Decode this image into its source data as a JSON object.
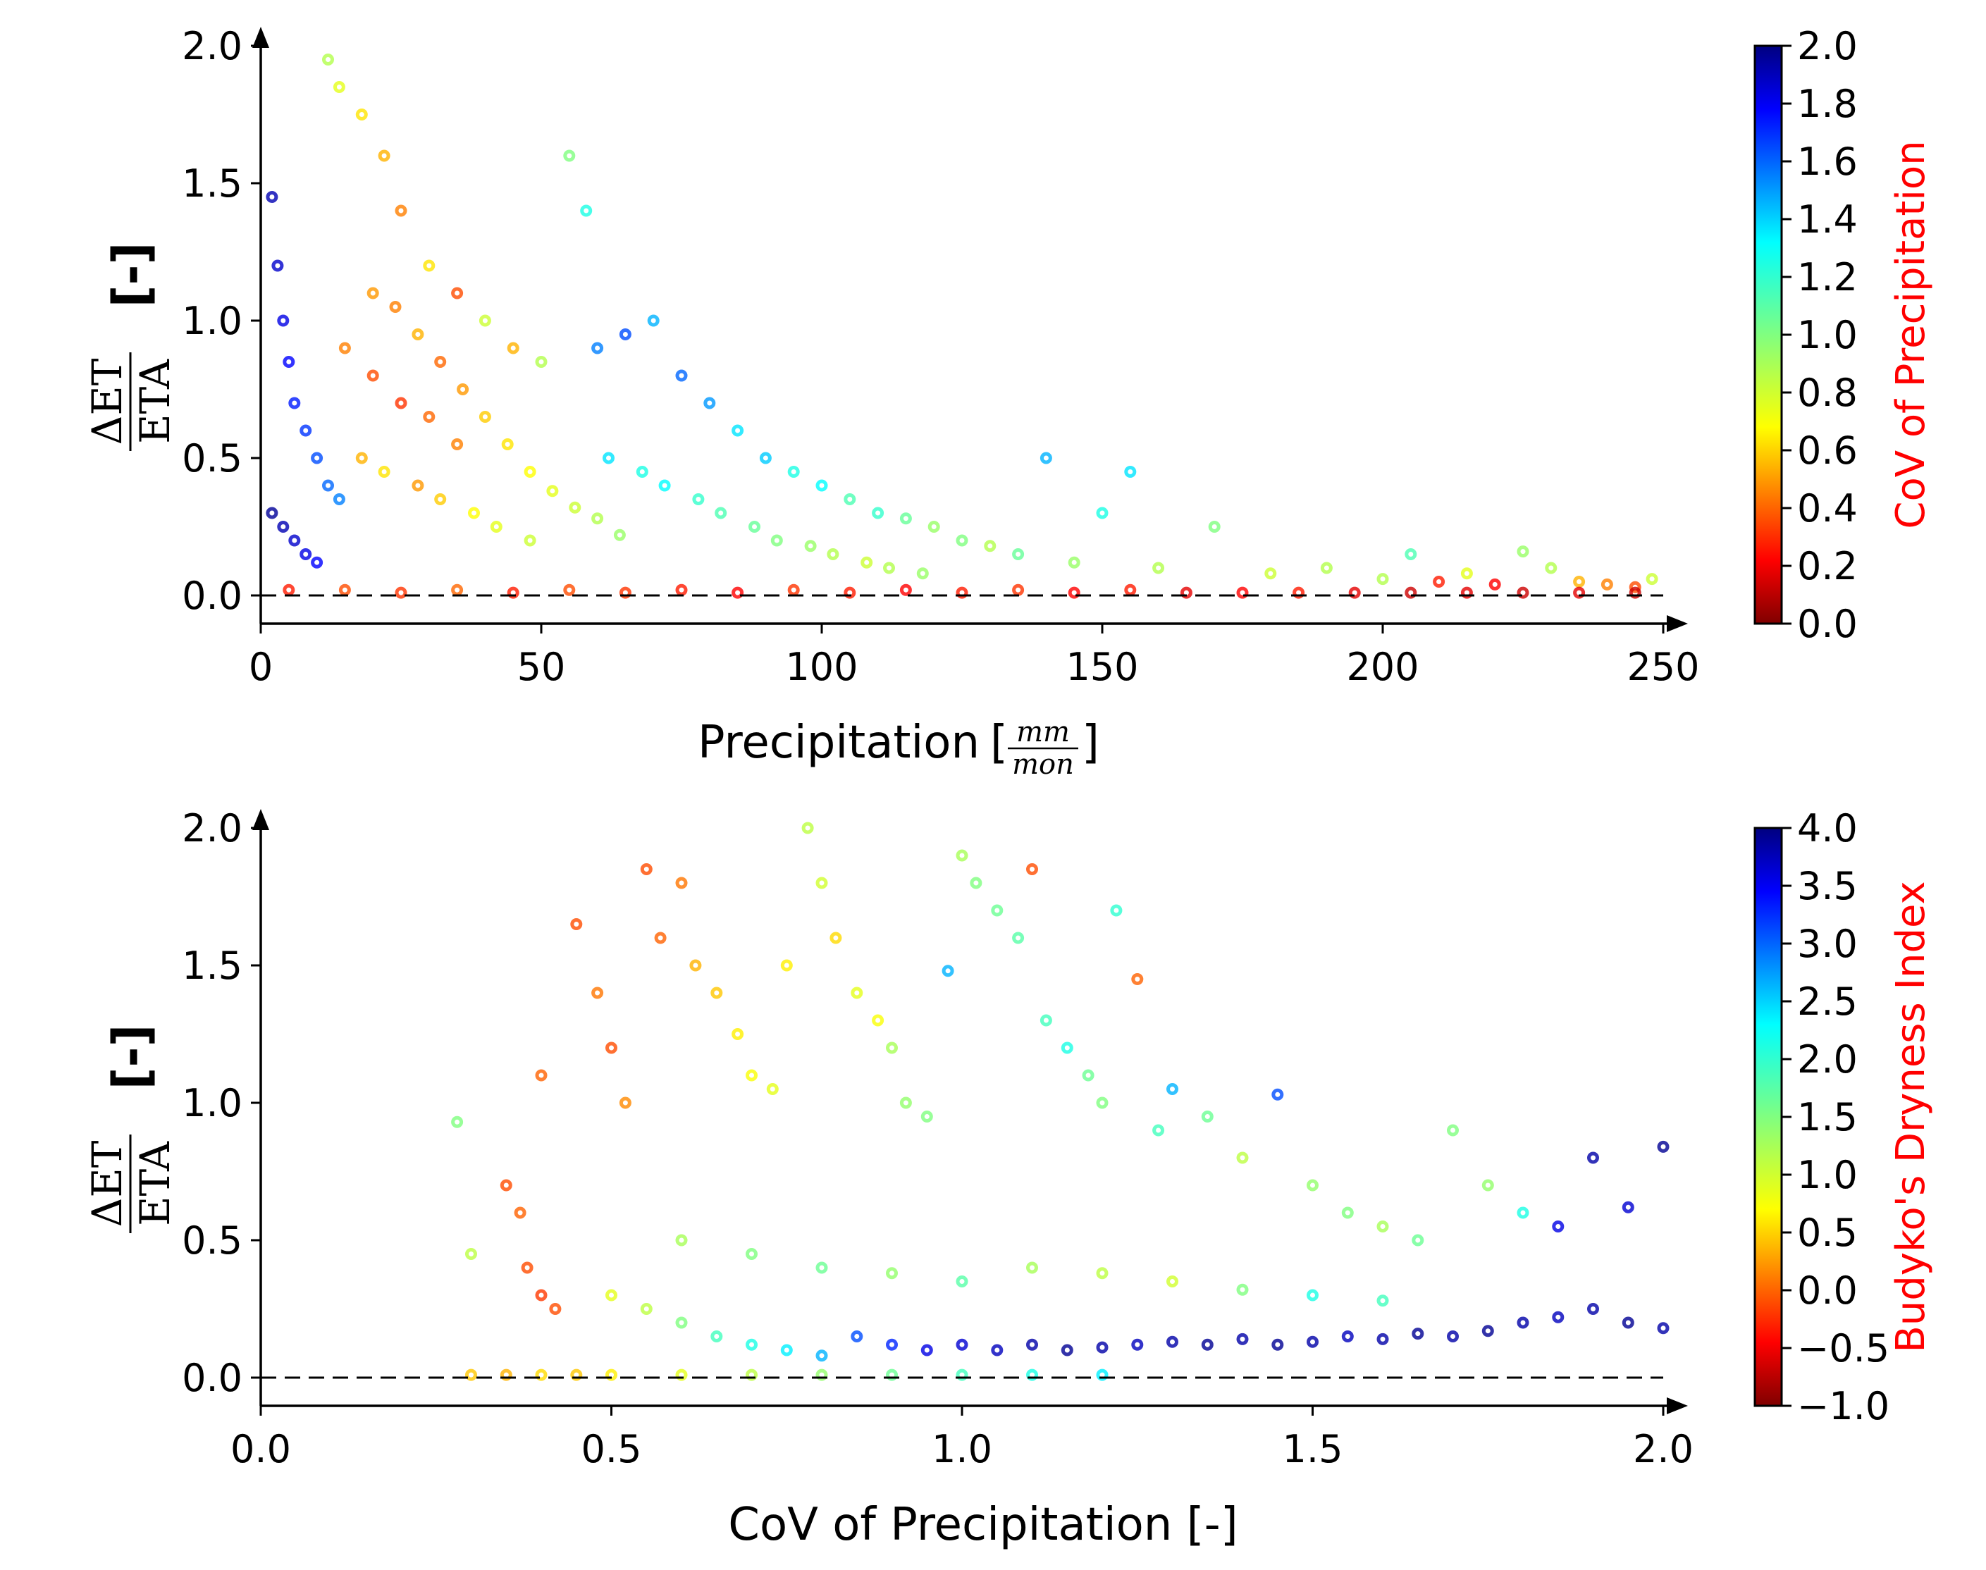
{
  "chart_data": [
    {
      "type": "scatter",
      "xlabel_text": "Precipitation",
      "xlabel_unit_num": "mm",
      "xlabel_unit_den": "mon",
      "ylabel_num": "ΔET",
      "ylabel_den": "ETA",
      "ylabel_unit": "[-]",
      "xlim": [
        0,
        250
      ],
      "ylim": [
        -0.1,
        2.0
      ],
      "x_ticks": [
        "0",
        "50",
        "100",
        "150",
        "200",
        "250"
      ],
      "x_tick_values": [
        0,
        50,
        100,
        150,
        200,
        250
      ],
      "y_ticks": [
        "0.0",
        "0.5",
        "1.0",
        "1.5",
        "2.0"
      ],
      "y_tick_values": [
        0,
        0.5,
        1.0,
        1.5,
        2.0
      ],
      "reference_line_y": 0,
      "colorbar": {
        "label": "CoV of Precipitation",
        "min": 0.0,
        "max": 2.0,
        "ticks": [
          "0.0",
          "0.2",
          "0.4",
          "0.6",
          "0.8",
          "1.0",
          "1.2",
          "1.4",
          "1.6",
          "1.8",
          "2.0"
        ],
        "tick_values": [
          0.0,
          0.2,
          0.4,
          0.6,
          0.8,
          1.0,
          1.2,
          1.4,
          1.6,
          1.8,
          2.0
        ],
        "colormap": "jet_r"
      },
      "points": [
        [
          2,
          1.45,
          1.9
        ],
        [
          3,
          1.2,
          1.85
        ],
        [
          4,
          1.0,
          1.8
        ],
        [
          5,
          0.85,
          1.75
        ],
        [
          6,
          0.7,
          1.7
        ],
        [
          8,
          0.6,
          1.65
        ],
        [
          10,
          0.5,
          1.6
        ],
        [
          12,
          0.4,
          1.55
        ],
        [
          14,
          0.35,
          1.5
        ],
        [
          2,
          0.3,
          1.95
        ],
        [
          4,
          0.25,
          1.9
        ],
        [
          6,
          0.2,
          1.85
        ],
        [
          8,
          0.15,
          1.8
        ],
        [
          10,
          0.12,
          1.75
        ],
        [
          12,
          1.95,
          0.9
        ],
        [
          14,
          1.85,
          0.8
        ],
        [
          18,
          1.75,
          0.7
        ],
        [
          22,
          1.6,
          0.6
        ],
        [
          25,
          1.4,
          0.5
        ],
        [
          30,
          1.2,
          0.7
        ],
        [
          35,
          1.1,
          0.4
        ],
        [
          40,
          1.0,
          0.85
        ],
        [
          45,
          0.9,
          0.6
        ],
        [
          50,
          0.85,
          0.9
        ],
        [
          55,
          1.6,
          1.0
        ],
        [
          58,
          1.4,
          1.2
        ],
        [
          15,
          0.9,
          0.5
        ],
        [
          20,
          0.8,
          0.4
        ],
        [
          25,
          0.7,
          0.35
        ],
        [
          30,
          0.65,
          0.45
        ],
        [
          35,
          0.55,
          0.5
        ],
        [
          18,
          0.5,
          0.6
        ],
        [
          22,
          0.45,
          0.7
        ],
        [
          28,
          0.4,
          0.55
        ],
        [
          32,
          0.35,
          0.65
        ],
        [
          38,
          0.3,
          0.75
        ],
        [
          42,
          0.25,
          0.8
        ],
        [
          48,
          0.2,
          0.85
        ],
        [
          60,
          0.9,
          1.5
        ],
        [
          65,
          0.95,
          1.6
        ],
        [
          70,
          1.0,
          1.4
        ],
        [
          75,
          0.8,
          1.55
        ],
        [
          80,
          0.7,
          1.45
        ],
        [
          85,
          0.6,
          1.3
        ],
        [
          90,
          0.5,
          1.35
        ],
        [
          95,
          0.45,
          1.2
        ],
        [
          100,
          0.4,
          1.25
        ],
        [
          105,
          0.35,
          1.1
        ],
        [
          110,
          0.3,
          1.15
        ],
        [
          115,
          0.28,
          1.05
        ],
        [
          62,
          0.5,
          1.3
        ],
        [
          68,
          0.45,
          1.2
        ],
        [
          72,
          0.4,
          1.25
        ],
        [
          78,
          0.35,
          1.15
        ],
        [
          82,
          0.3,
          1.1
        ],
        [
          88,
          0.25,
          1.05
        ],
        [
          92,
          0.2,
          1.0
        ],
        [
          98,
          0.18,
          0.95
        ],
        [
          102,
          0.15,
          0.9
        ],
        [
          108,
          0.12,
          0.85
        ],
        [
          112,
          0.1,
          0.9
        ],
        [
          118,
          0.08,
          0.95
        ],
        [
          120,
          0.25,
          0.95
        ],
        [
          125,
          0.2,
          1.0
        ],
        [
          130,
          0.18,
          0.9
        ],
        [
          135,
          0.15,
          1.05
        ],
        [
          140,
          0.5,
          1.4
        ],
        [
          145,
          0.12,
          0.95
        ],
        [
          150,
          0.3,
          1.2
        ],
        [
          155,
          0.45,
          1.3
        ],
        [
          160,
          0.1,
          0.9
        ],
        [
          170,
          0.25,
          1.0
        ],
        [
          180,
          0.08,
          0.85
        ],
        [
          190,
          0.1,
          0.9
        ],
        [
          200,
          0.06,
          0.9
        ],
        [
          205,
          0.15,
          1.1
        ],
        [
          210,
          0.05,
          0.3
        ],
        [
          215,
          0.08,
          0.8
        ],
        [
          220,
          0.04,
          0.25
        ],
        [
          225,
          0.16,
          0.95
        ],
        [
          230,
          0.1,
          0.9
        ],
        [
          235,
          0.05,
          0.6
        ],
        [
          240,
          0.04,
          0.5
        ],
        [
          245,
          0.03,
          0.4
        ],
        [
          248,
          0.06,
          0.85
        ],
        [
          5,
          0.02,
          0.3
        ],
        [
          15,
          0.02,
          0.4
        ],
        [
          25,
          0.01,
          0.35
        ],
        [
          35,
          0.02,
          0.45
        ],
        [
          45,
          0.01,
          0.3
        ],
        [
          55,
          0.02,
          0.4
        ],
        [
          65,
          0.01,
          0.35
        ],
        [
          75,
          0.02,
          0.3
        ],
        [
          85,
          0.01,
          0.25
        ],
        [
          95,
          0.02,
          0.35
        ],
        [
          105,
          0.01,
          0.3
        ],
        [
          115,
          0.02,
          0.25
        ],
        [
          125,
          0.01,
          0.3
        ],
        [
          135,
          0.02,
          0.35
        ],
        [
          145,
          0.01,
          0.25
        ],
        [
          155,
          0.02,
          0.3
        ],
        [
          165,
          0.01,
          0.2
        ],
        [
          175,
          0.01,
          0.25
        ],
        [
          185,
          0.01,
          0.3
        ],
        [
          195,
          0.01,
          0.2
        ],
        [
          205,
          0.01,
          0.15
        ],
        [
          215,
          0.01,
          0.2
        ],
        [
          225,
          0.01,
          0.15
        ],
        [
          235,
          0.01,
          0.2
        ],
        [
          245,
          0.01,
          0.15
        ],
        [
          20,
          1.1,
          0.55
        ],
        [
          24,
          1.05,
          0.5
        ],
        [
          28,
          0.95,
          0.6
        ],
        [
          32,
          0.85,
          0.45
        ],
        [
          36,
          0.75,
          0.55
        ],
        [
          40,
          0.65,
          0.65
        ],
        [
          44,
          0.55,
          0.7
        ],
        [
          48,
          0.45,
          0.75
        ],
        [
          52,
          0.38,
          0.8
        ],
        [
          56,
          0.32,
          0.85
        ],
        [
          60,
          0.28,
          0.9
        ],
        [
          64,
          0.22,
          0.95
        ]
      ]
    },
    {
      "type": "scatter",
      "xlabel": "CoV of Precipitation [-]",
      "ylabel_num": "ΔET",
      "ylabel_den": "ETA",
      "ylabel_unit": "[-]",
      "xlim": [
        0.0,
        2.0
      ],
      "ylim": [
        -0.1,
        2.0
      ],
      "x_ticks": [
        "0.0",
        "0.5",
        "1.0",
        "1.5",
        "2.0"
      ],
      "x_tick_values": [
        0.0,
        0.5,
        1.0,
        1.5,
        2.0
      ],
      "y_ticks": [
        "0.0",
        "0.5",
        "1.0",
        "1.5",
        "2.0"
      ],
      "y_tick_values": [
        0,
        0.5,
        1.0,
        1.5,
        2.0
      ],
      "reference_line_y": 0,
      "colorbar": {
        "label": "Budyko's Dryness Index",
        "min": -1.0,
        "max": 4.0,
        "ticks": [
          "−1.0",
          "−0.5",
          "0.0",
          "0.5",
          "1.0",
          "1.5",
          "2.0",
          "2.5",
          "3.0",
          "3.5",
          "4.0"
        ],
        "tick_values": [
          -1.0,
          -0.5,
          0.0,
          0.5,
          1.0,
          1.5,
          2.0,
          2.5,
          3.0,
          3.5,
          4.0
        ],
        "colormap": "jet_r"
      },
      "points": [
        [
          0.28,
          0.93,
          1.5
        ],
        [
          0.3,
          0.45,
          1.2
        ],
        [
          0.35,
          0.7,
          0.0
        ],
        [
          0.37,
          0.6,
          0.1
        ],
        [
          0.38,
          0.4,
          0.0
        ],
        [
          0.4,
          0.3,
          -0.1
        ],
        [
          0.42,
          0.25,
          0.0
        ],
        [
          0.4,
          1.1,
          0.1
        ],
        [
          0.45,
          1.65,
          0.0
        ],
        [
          0.48,
          1.4,
          0.2
        ],
        [
          0.5,
          1.2,
          0.0
        ],
        [
          0.52,
          1.0,
          0.3
        ],
        [
          0.55,
          1.85,
          0.0
        ],
        [
          0.57,
          1.6,
          0.1
        ],
        [
          0.6,
          1.8,
          0.2
        ],
        [
          0.62,
          1.5,
          0.5
        ],
        [
          0.65,
          1.4,
          0.6
        ],
        [
          0.68,
          1.25,
          0.8
        ],
        [
          0.7,
          1.1,
          0.9
        ],
        [
          0.73,
          1.05,
          1.0
        ],
        [
          0.75,
          1.5,
          0.8
        ],
        [
          0.78,
          2.0,
          1.2
        ],
        [
          0.8,
          1.8,
          1.1
        ],
        [
          0.82,
          1.6,
          0.7
        ],
        [
          0.85,
          1.4,
          1.0
        ],
        [
          0.88,
          1.3,
          0.9
        ],
        [
          0.9,
          1.2,
          1.3
        ],
        [
          0.92,
          1.0,
          1.4
        ],
        [
          0.95,
          0.95,
          1.5
        ],
        [
          0.98,
          1.48,
          2.5
        ],
        [
          1.0,
          1.9,
          1.3
        ],
        [
          1.02,
          1.8,
          1.5
        ],
        [
          1.05,
          1.7,
          1.6
        ],
        [
          1.08,
          1.6,
          1.7
        ],
        [
          1.1,
          1.85,
          0.0
        ],
        [
          1.12,
          1.3,
          1.8
        ],
        [
          1.15,
          1.2,
          2.0
        ],
        [
          1.18,
          1.1,
          1.6
        ],
        [
          1.2,
          1.0,
          1.5
        ],
        [
          1.22,
          1.7,
          1.9
        ],
        [
          1.25,
          1.45,
          0.1
        ],
        [
          1.28,
          0.9,
          1.8
        ],
        [
          1.3,
          1.05,
          2.5
        ],
        [
          1.35,
          0.95,
          1.6
        ],
        [
          1.4,
          0.8,
          1.2
        ],
        [
          1.45,
          1.03,
          3.0
        ],
        [
          1.5,
          0.7,
          1.4
        ],
        [
          1.55,
          0.6,
          1.5
        ],
        [
          1.6,
          0.55,
          1.3
        ],
        [
          1.65,
          0.5,
          1.6
        ],
        [
          1.7,
          0.9,
          1.5
        ],
        [
          1.75,
          0.7,
          1.4
        ],
        [
          1.8,
          0.6,
          2.0
        ],
        [
          1.85,
          0.55,
          3.5
        ],
        [
          1.9,
          0.8,
          3.8
        ],
        [
          1.95,
          0.62,
          3.6
        ],
        [
          2.0,
          0.84,
          3.9
        ],
        [
          0.5,
          0.3,
          1.0
        ],
        [
          0.55,
          0.25,
          1.2
        ],
        [
          0.6,
          0.2,
          1.5
        ],
        [
          0.65,
          0.15,
          1.8
        ],
        [
          0.7,
          0.12,
          2.0
        ],
        [
          0.75,
          0.1,
          2.2
        ],
        [
          0.8,
          0.08,
          2.5
        ],
        [
          0.85,
          0.15,
          3.0
        ],
        [
          0.9,
          0.12,
          3.2
        ],
        [
          0.95,
          0.1,
          3.5
        ],
        [
          1.0,
          0.12,
          3.6
        ],
        [
          1.05,
          0.1,
          3.7
        ],
        [
          1.1,
          0.12,
          3.8
        ],
        [
          1.15,
          0.1,
          3.9
        ],
        [
          1.2,
          0.11,
          3.8
        ],
        [
          1.25,
          0.12,
          3.7
        ],
        [
          1.3,
          0.13,
          3.8
        ],
        [
          1.35,
          0.12,
          3.9
        ],
        [
          1.4,
          0.14,
          3.8
        ],
        [
          1.45,
          0.12,
          3.9
        ],
        [
          1.5,
          0.13,
          3.8
        ],
        [
          1.55,
          0.15,
          3.7
        ],
        [
          1.6,
          0.14,
          3.8
        ],
        [
          1.65,
          0.16,
          3.9
        ],
        [
          1.7,
          0.15,
          3.8
        ],
        [
          1.75,
          0.17,
          3.9
        ],
        [
          1.8,
          0.2,
          3.8
        ],
        [
          1.85,
          0.22,
          3.7
        ],
        [
          1.9,
          0.25,
          3.8
        ],
        [
          1.95,
          0.2,
          3.9
        ],
        [
          2.0,
          0.18,
          3.8
        ],
        [
          0.6,
          0.5,
          1.3
        ],
        [
          0.7,
          0.45,
          1.5
        ],
        [
          0.8,
          0.4,
          1.6
        ],
        [
          0.9,
          0.38,
          1.4
        ],
        [
          1.0,
          0.35,
          1.7
        ],
        [
          1.1,
          0.4,
          1.3
        ],
        [
          1.2,
          0.38,
          1.2
        ],
        [
          1.3,
          0.35,
          1.1
        ],
        [
          1.4,
          0.32,
          1.5
        ],
        [
          1.5,
          0.3,
          2.0
        ],
        [
          1.6,
          0.28,
          1.8
        ],
        [
          0.3,
          0.01,
          0.6
        ],
        [
          0.35,
          0.01,
          0.5
        ],
        [
          0.4,
          0.01,
          0.7
        ],
        [
          0.45,
          0.01,
          0.6
        ],
        [
          0.5,
          0.01,
          0.8
        ],
        [
          0.6,
          0.01,
          1.0
        ],
        [
          0.7,
          0.01,
          1.2
        ],
        [
          0.8,
          0.01,
          1.4
        ],
        [
          0.9,
          0.01,
          1.6
        ],
        [
          1.0,
          0.01,
          1.8
        ],
        [
          1.1,
          0.01,
          2.0
        ],
        [
          1.2,
          0.01,
          2.2
        ]
      ]
    }
  ]
}
